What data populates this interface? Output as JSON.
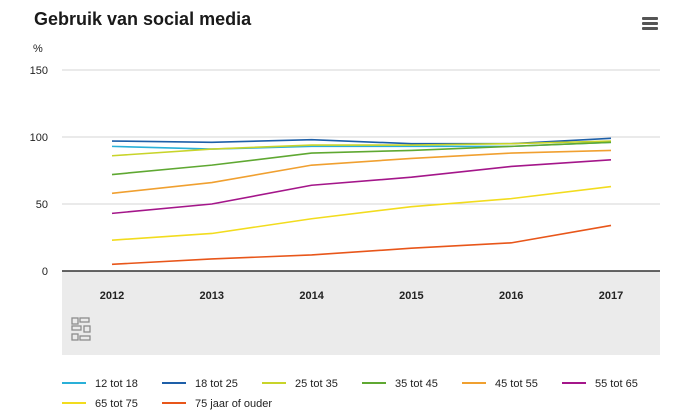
{
  "header": {
    "title": "Gebruik van social media",
    "menu_icon": "hamburger-menu-icon"
  },
  "chart_data": {
    "type": "line",
    "title": "Gebruik van social media",
    "ylabel": "%",
    "xlabel": "",
    "ylim": [
      0,
      150
    ],
    "yticks": [
      0,
      50,
      100,
      150
    ],
    "x": [
      "2012",
      "2013",
      "2014",
      "2015",
      "2016",
      "2017"
    ],
    "grid": true,
    "legend_position": "bottom",
    "watermark": "cbs",
    "series": [
      {
        "name": "12 tot 18",
        "color": "#2ab0d8",
        "values": [
          93,
          91,
          93,
          93,
          93,
          96
        ]
      },
      {
        "name": "18 tot 25",
        "color": "#1e5fa8",
        "values": [
          97,
          96,
          98,
          95,
          95,
          99
        ]
      },
      {
        "name": "25 tot 35",
        "color": "#c8d42a",
        "values": [
          86,
          91,
          94,
          94,
          95,
          97
        ]
      },
      {
        "name": "35 tot 45",
        "color": "#5fa832",
        "values": [
          72,
          79,
          88,
          90,
          93,
          96
        ]
      },
      {
        "name": "45 tot 55",
        "color": "#f0a030",
        "values": [
          58,
          66,
          79,
          84,
          88,
          90
        ]
      },
      {
        "name": "55 tot 65",
        "color": "#a4168a",
        "values": [
          43,
          50,
          64,
          70,
          78,
          83
        ]
      },
      {
        "name": "65 tot 75",
        "color": "#f2dc1e",
        "values": [
          23,
          28,
          39,
          48,
          54,
          63
        ]
      },
      {
        "name": "75 jaar of ouder",
        "color": "#e8561a",
        "values": [
          5,
          9,
          12,
          17,
          21,
          34
        ]
      }
    ]
  }
}
